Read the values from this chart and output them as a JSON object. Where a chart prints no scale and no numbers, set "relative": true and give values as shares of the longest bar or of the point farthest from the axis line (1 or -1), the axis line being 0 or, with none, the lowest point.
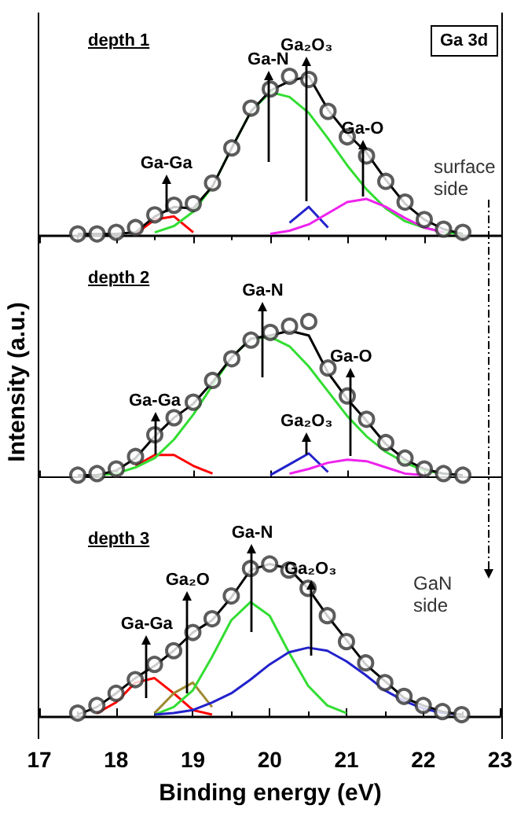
{
  "chart_data": [
    {
      "type": "line",
      "title": "depth 1",
      "x": [
        17.5,
        17.75,
        18,
        18.25,
        18.5,
        18.75,
        19,
        19.25,
        19.5,
        19.75,
        20,
        20.25,
        20.5,
        20.75,
        21,
        21.25,
        21.5,
        21.75,
        22,
        22.25,
        22.5
      ],
      "xlim": [
        17,
        23
      ],
      "xticks": [
        {
          "value": 17,
          "label": null
        },
        {
          "value": 18,
          "label": null
        },
        {
          "value": 19,
          "label": null
        },
        {
          "value": 20,
          "label": null
        },
        {
          "value": 21,
          "label": null
        },
        {
          "value": 22,
          "label": null
        },
        {
          "value": 23,
          "label": null
        }
      ],
      "tick_labels": false,
      "relative": true,
      "grid": false,
      "marker": "none",
      "line_style": "solid",
      "annotations": [
        "Ga 3d",
        "surface side",
        "Ga-Ga",
        "Ga-N",
        "Ga₂O₃",
        "Ga-O"
      ],
      "series": [
        {
          "color": "#ff0000",
          "values": [
            null,
            null,
            null,
            0.01,
            0.1,
            0.12,
            0.02,
            null,
            null,
            null,
            null,
            null,
            null,
            null,
            null,
            null,
            null,
            null,
            null,
            null,
            null
          ]
        },
        {
          "color": "#33dd33",
          "values": [
            null,
            null,
            null,
            null,
            0.02,
            0.06,
            0.15,
            0.31,
            0.55,
            0.78,
            0.9,
            0.87,
            0.77,
            0.61,
            0.44,
            0.29,
            0.17,
            0.09,
            0.05,
            0.02,
            0.01
          ]
        },
        {
          "color": "#2222cc",
          "values": [
            null,
            null,
            null,
            null,
            null,
            null,
            null,
            null,
            null,
            null,
            null,
            0.08,
            0.18,
            0.05,
            null,
            null,
            null,
            null,
            null,
            null,
            null
          ]
        },
        {
          "color": "#ee22ee",
          "values": [
            null,
            null,
            null,
            null,
            null,
            null,
            null,
            null,
            null,
            null,
            0.01,
            0.03,
            0.07,
            0.14,
            0.21,
            0.23,
            0.18,
            0.11,
            0.05,
            0.02,
            null
          ]
        },
        {
          "color": "#000000",
          "values": [
            0.01,
            0.01,
            0.01,
            0.02,
            0.12,
            0.18,
            0.17,
            0.31,
            0.55,
            0.78,
            0.91,
            0.97,
            1.0,
            0.79,
            0.64,
            0.52,
            0.35,
            0.2,
            0.1,
            0.04,
            0.01
          ]
        },
        {
          "type": "scatter",
          "marker": "circle",
          "color": "#333333",
          "values": [
            0.01,
            0.01,
            0.02,
            0.05,
            0.13,
            0.19,
            0.2,
            0.33,
            0.55,
            0.8,
            0.92,
            1.0,
            0.98,
            0.78,
            0.62,
            0.5,
            0.34,
            0.21,
            0.1,
            0.04,
            0.02
          ]
        }
      ]
    },
    {
      "type": "line",
      "title": "depth 2",
      "ylabel": "Intensity (a.u.)",
      "x": [
        17.5,
        17.75,
        18,
        18.25,
        18.5,
        18.75,
        19,
        19.25,
        19.5,
        19.75,
        20,
        20.25,
        20.5,
        20.75,
        21,
        21.25,
        21.5,
        21.75,
        22,
        22.25,
        22.5
      ],
      "xlim": [
        17,
        23
      ],
      "xticks": [
        {
          "value": 17,
          "label": null
        },
        {
          "value": 18,
          "label": null
        },
        {
          "value": 19,
          "label": null
        },
        {
          "value": 20,
          "label": null
        },
        {
          "value": 21,
          "label": null
        },
        {
          "value": 22,
          "label": null
        },
        {
          "value": 23,
          "label": null
        }
      ],
      "tick_labels": false,
      "relative": true,
      "grid": false,
      "marker": "none",
      "line_style": "solid",
      "annotations": [
        "Ga-Ga",
        "Ga-N",
        "Ga₂O₃",
        "Ga-O"
      ],
      "series": [
        {
          "color": "#ff0000",
          "values": [
            null,
            null,
            null,
            0.07,
            0.14,
            0.14,
            0.07,
            0.02,
            null,
            null,
            null,
            null,
            null,
            null,
            null,
            null,
            null,
            null,
            null,
            null,
            null
          ]
        },
        {
          "color": "#33dd33",
          "values": [
            null,
            0.01,
            0.02,
            0.06,
            0.12,
            0.24,
            0.4,
            0.59,
            0.77,
            0.89,
            0.9,
            0.84,
            0.71,
            0.55,
            0.39,
            0.26,
            0.16,
            0.09,
            0.04,
            0.02,
            0.01
          ]
        },
        {
          "color": "#2222cc",
          "values": [
            null,
            null,
            null,
            null,
            null,
            null,
            null,
            null,
            null,
            null,
            0.01,
            0.08,
            0.15,
            0.03,
            null,
            null,
            null,
            null,
            null,
            null,
            null
          ]
        },
        {
          "color": "#ee22ee",
          "values": [
            null,
            null,
            null,
            null,
            null,
            null,
            null,
            null,
            null,
            null,
            null,
            0.02,
            0.05,
            0.09,
            0.11,
            0.1,
            0.06,
            0.02,
            0.01,
            null,
            null
          ]
        },
        {
          "color": "#000000",
          "values": [
            0.01,
            0.01,
            0.04,
            0.12,
            0.26,
            0.38,
            0.47,
            0.61,
            0.77,
            0.89,
            0.91,
            0.94,
            0.91,
            0.67,
            0.5,
            0.36,
            0.21,
            0.11,
            0.05,
            0.02,
            0.01
          ]
        },
        {
          "type": "scatter",
          "marker": "circle",
          "color": "#333333",
          "values": [
            0.01,
            0.02,
            0.05,
            0.13,
            0.27,
            0.38,
            0.48,
            0.62,
            0.76,
            0.88,
            0.93,
            0.97,
            1.0,
            0.7,
            0.52,
            0.37,
            0.22,
            0.12,
            0.05,
            0.02,
            0.01
          ]
        }
      ]
    },
    {
      "type": "line",
      "title": "depth 3",
      "xlabel": "Binding energy (eV)",
      "x": [
        17.5,
        17.75,
        18,
        18.25,
        18.5,
        18.75,
        19,
        19.25,
        19.5,
        19.75,
        20,
        20.25,
        20.5,
        20.75,
        21,
        21.25,
        21.5,
        21.75,
        22,
        22.25,
        22.5
      ],
      "xlim": [
        17,
        23
      ],
      "xticks": [
        17,
        18,
        19,
        20,
        21,
        22,
        23
      ],
      "tick_labels": "x",
      "relative": true,
      "grid": false,
      "marker": "none",
      "line_style": "solid",
      "annotations": [
        "GaN side",
        "Ga-Ga",
        "Ga₂O",
        "Ga-N",
        "Ga₂O₃"
      ],
      "series": [
        {
          "color": "#ff0000",
          "values": [
            null,
            0.02,
            0.09,
            0.22,
            0.25,
            0.15,
            0.04,
            0.01,
            null,
            null,
            null,
            null,
            null,
            null,
            null,
            null,
            null,
            null,
            null,
            null,
            null
          ]
        },
        {
          "color": "#a08a30",
          "values": [
            null,
            null,
            null,
            null,
            0.02,
            0.15,
            0.22,
            0.06,
            null,
            null,
            null,
            null,
            null,
            null,
            null,
            null,
            null,
            null,
            null,
            null,
            null
          ]
        },
        {
          "color": "#33dd33",
          "values": [
            null,
            null,
            null,
            null,
            0.01,
            0.06,
            0.17,
            0.39,
            0.63,
            0.75,
            0.66,
            0.42,
            0.2,
            0.07,
            0.02,
            null,
            null,
            null,
            null,
            null,
            null
          ]
        },
        {
          "color": "#2222cc",
          "values": [
            null,
            null,
            null,
            null,
            0.01,
            0.02,
            0.04,
            0.09,
            0.15,
            0.24,
            0.34,
            0.42,
            0.45,
            0.43,
            0.36,
            0.27,
            0.17,
            0.1,
            0.05,
            0.02,
            0.01
          ]
        },
        {
          "color": "#000000",
          "values": [
            0.01,
            0.06,
            0.15,
            0.25,
            0.33,
            0.43,
            0.55,
            0.63,
            0.78,
            0.96,
            1.0,
            0.97,
            0.84,
            0.66,
            0.5,
            0.34,
            0.23,
            0.12,
            0.07,
            0.03,
            0.01
          ]
        },
        {
          "type": "scatter",
          "marker": "circle",
          "color": "#333333",
          "values": [
            0.02,
            0.07,
            0.15,
            0.24,
            0.34,
            0.43,
            0.55,
            0.64,
            0.79,
            0.97,
            1.0,
            0.96,
            0.84,
            0.66,
            0.49,
            0.35,
            0.22,
            0.13,
            0.07,
            0.03,
            0.01
          ]
        }
      ]
    }
  ]
}
